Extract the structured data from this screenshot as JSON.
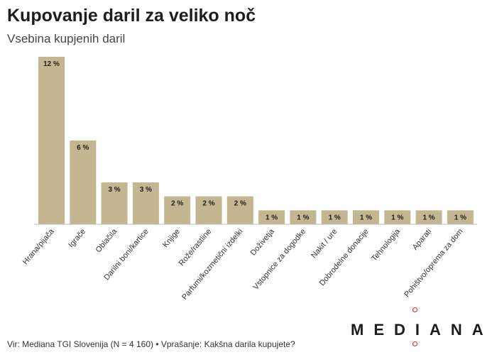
{
  "header": {
    "title": "Kupovanje daril za veliko noč",
    "subtitle": "Vsebina kupjenih daril"
  },
  "footer": {
    "source": "Vir: Mediana TGI Slovenija (N = 4 160) • Vprašanje: Kakšna darila kupujete?"
  },
  "brand": {
    "logo_text": "MEDIANA",
    "accent_color": "#d8262f"
  },
  "chart_data": {
    "type": "bar",
    "title": "Kupovanje daril za veliko noč",
    "subtitle": "Vsebina kupjenih daril",
    "categories": [
      "Hrana/pijača",
      "Igrače",
      "Oblačila",
      "Darilni boni/kartice",
      "Knjige",
      "Rože/rastline",
      "Parfumi/kozmetični izdelki",
      "Doživetja",
      "Vstopnice za dogodke",
      "Nakit / ure",
      "Dobrodelne donacije",
      "Tehnologija",
      "Aparati",
      "Pohištvo/oprema za dom"
    ],
    "values": [
      12,
      6,
      3,
      3,
      2,
      2,
      2,
      1,
      1,
      1,
      1,
      1,
      1,
      1
    ],
    "value_labels": [
      "12 %",
      "6 %",
      "3 %",
      "3 %",
      "2 %",
      "2 %",
      "2 %",
      "1 %",
      "1 %",
      "1 %",
      "1 %",
      "1 %",
      "1 %",
      "1 %"
    ],
    "ylim": [
      0,
      12
    ],
    "grid": false,
    "bar_color": "#c3b691"
  }
}
